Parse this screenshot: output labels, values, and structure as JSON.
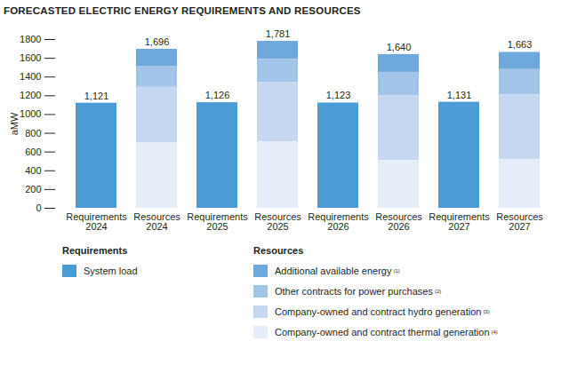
{
  "chart_data": {
    "type": "bar",
    "title": "FORECASTED ELECTRIC ENERGY REQUIREMENTS AND RESOURCES",
    "y_label": "aMW",
    "categories": [
      "Requirements\n2024",
      "Resources\n2024",
      "Requirements\n2025",
      "Resources\n2025",
      "Requirements\n2026",
      "Resources\n2026",
      "Requirements\n2027",
      "Resources\n2027"
    ],
    "legend_groups": [
      "Requirements",
      "Resources"
    ],
    "series": [
      {
        "name": "System load",
        "group": "Requirements",
        "color": "#4b9bd7",
        "values": [
          1121,
          null,
          1126,
          null,
          1123,
          null,
          1131,
          null
        ]
      },
      {
        "name": "Additional available energy",
        "note": "(1)",
        "group": "Resources",
        "color": "#6ea8dc",
        "values": [
          null,
          186,
          null,
          191,
          null,
          190,
          null,
          183
        ]
      },
      {
        "name": "Other contracts for power purchases",
        "note": "(2)",
        "group": "Resources",
        "color": "#a3c4e9",
        "values": [
          null,
          220,
          null,
          250,
          null,
          250,
          null,
          270
        ]
      },
      {
        "name": "Company-owned and contract hydro generation",
        "note": "(3)",
        "group": "Resources",
        "color": "#c6d8f0",
        "values": [
          null,
          590,
          null,
          630,
          null,
          690,
          null,
          690
        ]
      },
      {
        "name": "Company-owned and contract thermal generation",
        "note": "(4)",
        "group": "Resources",
        "color": "#e4edf8",
        "values": [
          null,
          700,
          null,
          710,
          null,
          510,
          null,
          520
        ]
      }
    ],
    "totals": [
      1121,
      1696,
      1126,
      1781,
      1123,
      1640,
      1131,
      1663
    ],
    "stacked": true,
    "data_labels": true,
    "grid": false,
    "ylim": [
      0,
      1800
    ],
    "yticks": [
      0,
      200,
      400,
      600,
      800,
      1000,
      1200,
      1400,
      1600,
      1800
    ]
  }
}
